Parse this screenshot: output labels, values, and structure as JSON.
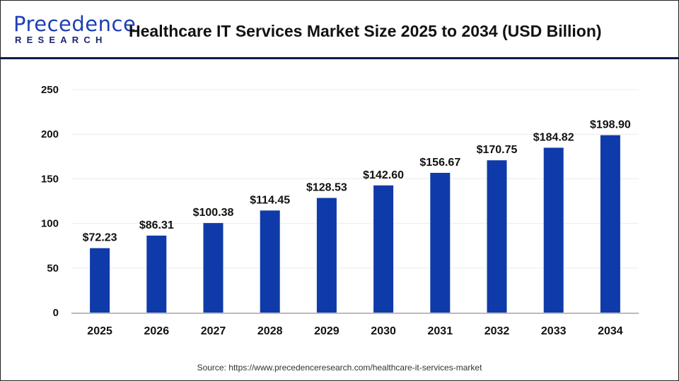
{
  "logo": {
    "text_top": "Precedence",
    "text_bottom": "RESEARCH"
  },
  "header": {
    "title": "Healthcare IT Services Market Size 2025 to 2034 (USD Billion)"
  },
  "source": "Source: https://www.precedenceresearch.com/healthcare-it-services-market",
  "colors": {
    "bar": "#0f3aa9",
    "header_rule": "#0c1a4a"
  },
  "chart_data": {
    "type": "bar",
    "title": "Healthcare IT Services Market Size 2025 to 2034 (USD Billion)",
    "categories": [
      "2025",
      "2026",
      "2027",
      "2028",
      "2029",
      "2030",
      "2031",
      "2032",
      "2033",
      "2034"
    ],
    "values": [
      72.23,
      86.31,
      100.38,
      114.45,
      128.53,
      142.6,
      156.67,
      170.75,
      184.82,
      198.9
    ],
    "data_labels": [
      "$72.23",
      "$86.31",
      "$100.38",
      "$114.45",
      "$128.53",
      "$142.60",
      "$156.67",
      "$170.75",
      "$184.82",
      "$198.90"
    ],
    "xlabel": "",
    "ylabel": "",
    "ylim": [
      0,
      250
    ],
    "yticks": [
      0,
      50,
      100,
      150,
      200,
      250
    ],
    "grid": true,
    "legend": "none"
  }
}
